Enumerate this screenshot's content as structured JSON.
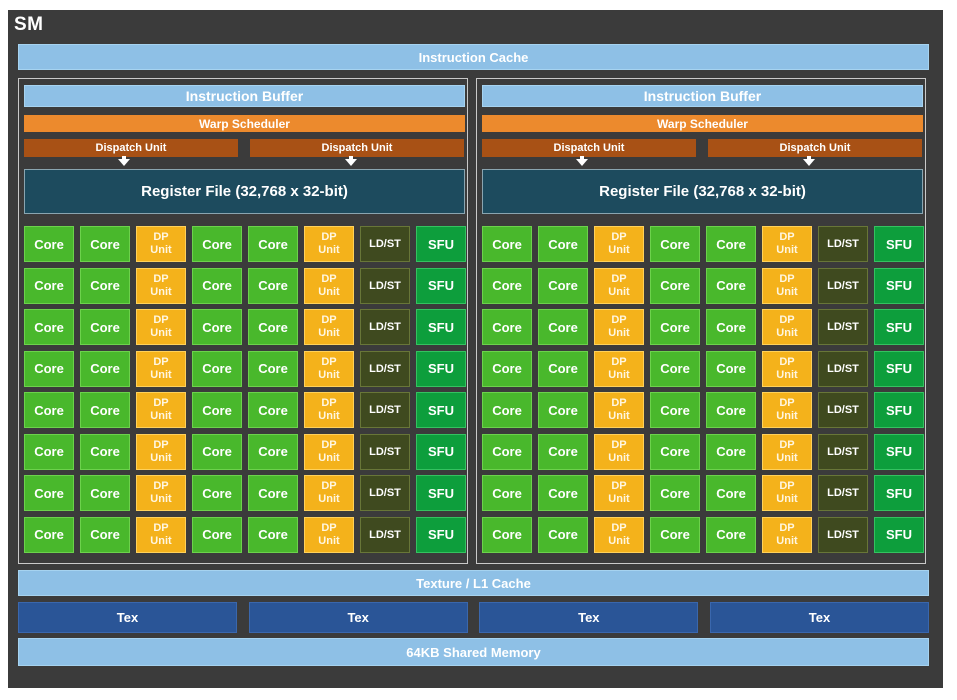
{
  "sm_label": "SM",
  "instruction_cache": "Instruction Cache",
  "texture_cache": "Texture / L1 Cache",
  "shared_memory": "64KB Shared Memory",
  "tex_units": [
    "Tex",
    "Tex",
    "Tex",
    "Tex"
  ],
  "left_block": {
    "instruction_buffer": "Instruction Buffer",
    "warp_scheduler": "Warp Scheduler",
    "dispatch_units": [
      "Dispatch Unit",
      "Dispatch Unit"
    ],
    "register_file": "Register File (32,768 x 32-bit)"
  },
  "right_block": {
    "instruction_buffer": "Instruction Buffer",
    "warp_scheduler": "Warp Scheduler",
    "dispatch_units": [
      "Dispatch Unit",
      "Dispatch Unit"
    ],
    "register_file": "Register File (32,768 x 32-bit)"
  },
  "unit_row": [
    {
      "type": "core",
      "label": "Core"
    },
    {
      "type": "core",
      "label": "Core"
    },
    {
      "type": "dp",
      "label_line1": "DP",
      "label_line2": "Unit"
    },
    {
      "type": "core",
      "label": "Core"
    },
    {
      "type": "core",
      "label": "Core"
    },
    {
      "type": "dp",
      "label_line1": "DP",
      "label_line2": "Unit"
    },
    {
      "type": "ldst",
      "label": "LD/ST"
    },
    {
      "type": "sfu",
      "label": "SFU"
    }
  ],
  "unit_row_count": 8,
  "colors": {
    "background": "#3b3b3b",
    "cache_blue": "#8ec0e6",
    "tex_blue": "#2a5597",
    "warp_orange": "#ec8a2d",
    "dispatch_brown": "#a85115",
    "register_teal": "#1d4b5e",
    "core_green": "#49b82c",
    "dp_yellow": "#f4b21b",
    "ldst_olive": "#3f4a1f",
    "sfu_green": "#0d9e3c"
  }
}
